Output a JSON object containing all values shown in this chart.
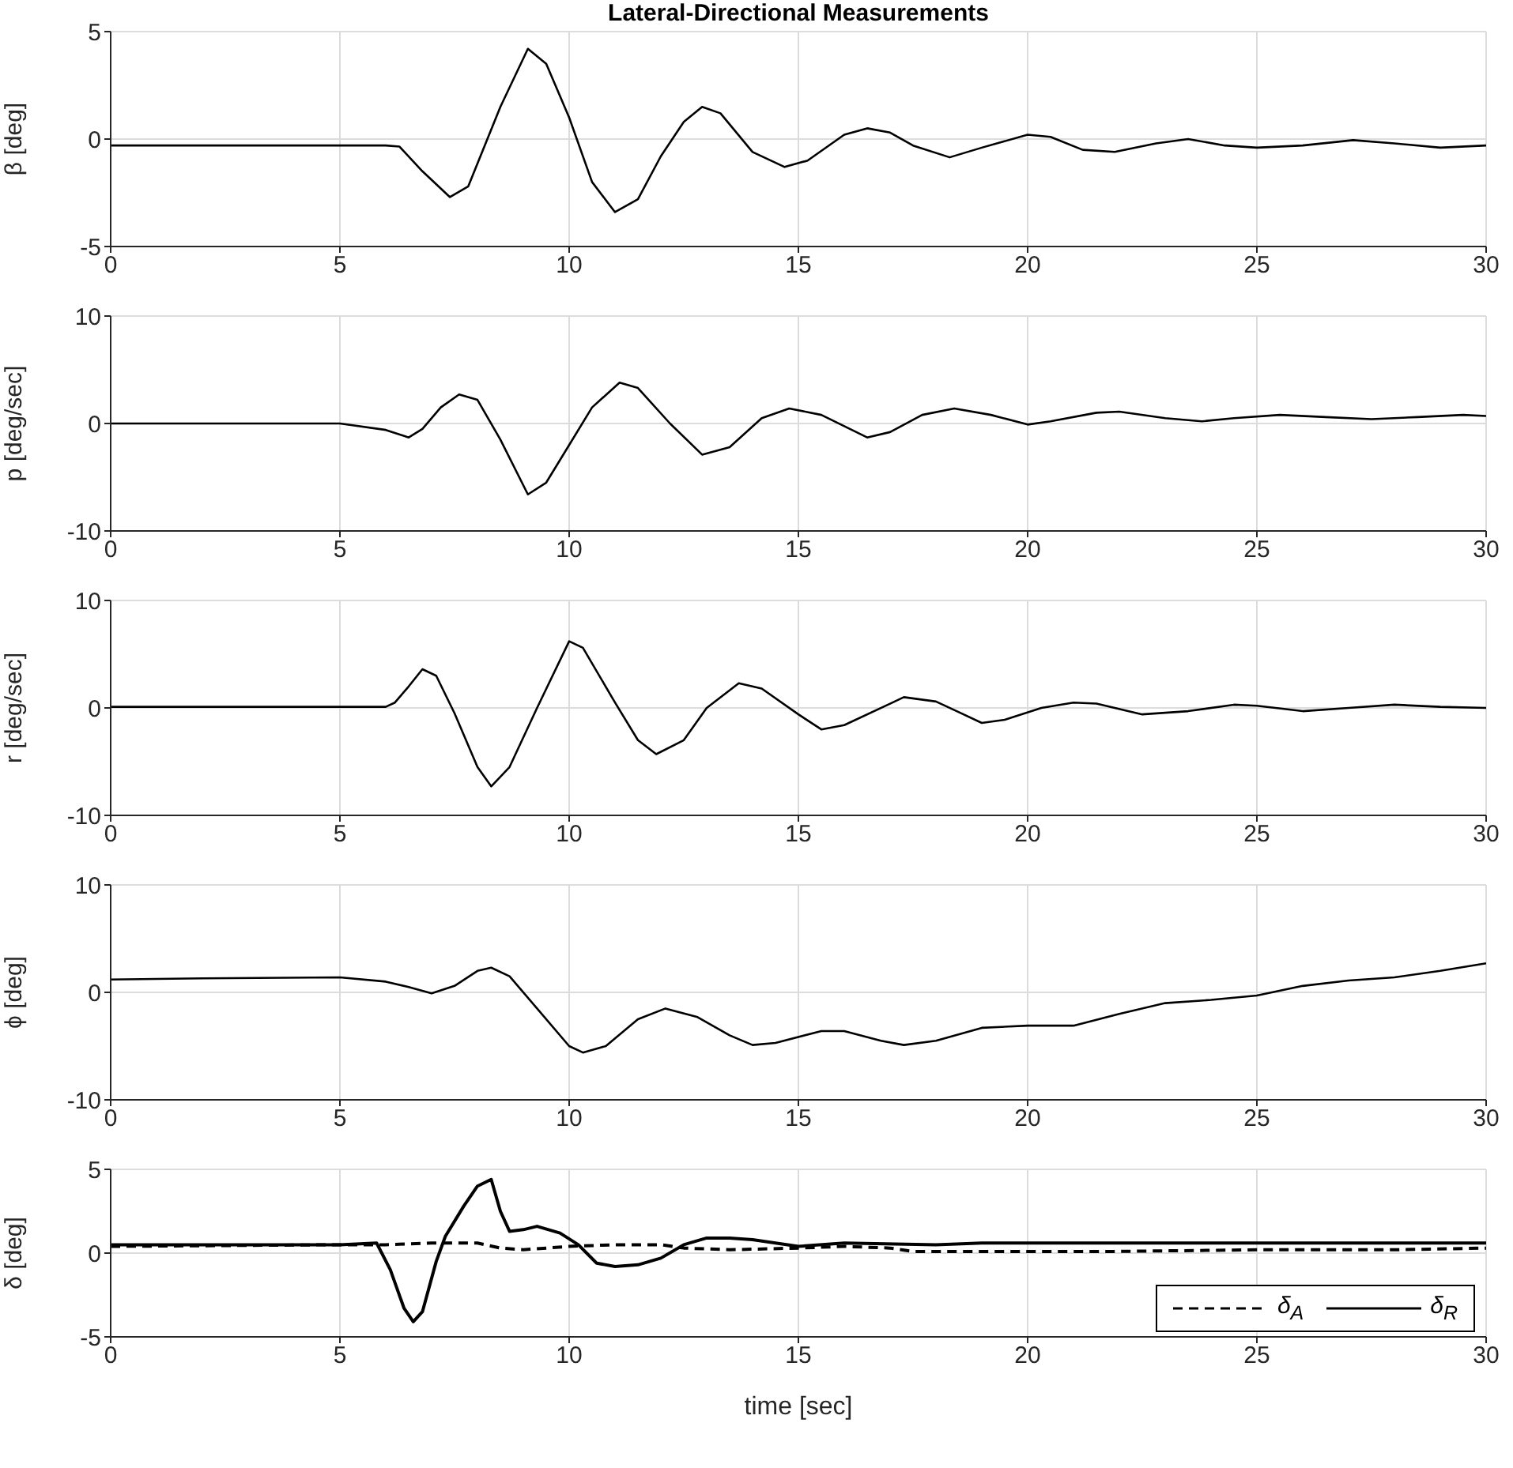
{
  "chart_data": [
    {
      "type": "line",
      "title": "Lateral-Directional Measurements",
      "ylabel": "β [deg]",
      "xlim": [
        0,
        30
      ],
      "xticks": [
        0,
        5,
        10,
        15,
        20,
        25,
        30
      ],
      "ylim": [
        -5,
        5
      ],
      "yticks": [
        -5,
        0,
        5
      ],
      "grid": true,
      "series": [
        {
          "color": "#000000",
          "x": [
            0,
            5,
            6,
            6.3,
            6.8,
            7.4,
            7.8,
            8.5,
            9.1,
            9.5,
            10,
            10.5,
            11,
            11.5,
            12,
            12.5,
            12.9,
            13.3,
            14,
            14.7,
            15.2,
            16,
            16.5,
            17,
            17.5,
            18.3,
            19,
            20,
            20.5,
            21.2,
            21.9,
            22.8,
            23.5,
            24.3,
            25,
            26,
            27.1,
            28,
            29,
            30
          ],
          "values": [
            -0.3,
            -0.3,
            -0.3,
            -0.35,
            -1.5,
            -2.7,
            -2.2,
            1.5,
            4.2,
            3.5,
            1,
            -2,
            -3.4,
            -2.8,
            -0.8,
            0.8,
            1.5,
            1.2,
            -0.6,
            -1.3,
            -1,
            0.2,
            0.5,
            0.3,
            -0.3,
            -0.85,
            -0.4,
            0.2,
            0.1,
            -0.5,
            -0.6,
            -0.2,
            0,
            -0.3,
            -0.4,
            -0.3,
            -0.05,
            -0.2,
            -0.4,
            -0.3
          ]
        }
      ]
    },
    {
      "type": "line",
      "ylabel": "p [deg/sec]",
      "xlim": [
        0,
        30
      ],
      "xticks": [
        0,
        5,
        10,
        15,
        20,
        25,
        30
      ],
      "ylim": [
        -10,
        10
      ],
      "yticks": [
        -10,
        0,
        10
      ],
      "grid": true,
      "series": [
        {
          "color": "#000000",
          "x": [
            0,
            5,
            6,
            6.5,
            6.8,
            7.2,
            7.6,
            8,
            8.5,
            9.1,
            9.5,
            10,
            10.5,
            11.1,
            11.5,
            12.2,
            12.9,
            13.5,
            14.2,
            14.8,
            15.5,
            16.5,
            17,
            17.7,
            18.4,
            19.2,
            20,
            20.5,
            21.5,
            22,
            23,
            23.8,
            24.5,
            25.5,
            26.5,
            27.5,
            28.5,
            29.5,
            30
          ],
          "values": [
            0,
            0,
            -0.6,
            -1.3,
            -0.5,
            1.5,
            2.7,
            2.2,
            -1.5,
            -6.6,
            -5.5,
            -2,
            1.5,
            3.8,
            3.3,
            0,
            -2.9,
            -2.2,
            0.5,
            1.4,
            0.8,
            -1.3,
            -0.8,
            0.8,
            1.4,
            0.8,
            -0.1,
            0.2,
            1,
            1.1,
            0.5,
            0.2,
            0.5,
            0.8,
            0.6,
            0.4,
            0.6,
            0.8,
            0.7
          ]
        }
      ]
    },
    {
      "type": "line",
      "ylabel": "r [deg/sec]",
      "xlim": [
        0,
        30
      ],
      "xticks": [
        0,
        5,
        10,
        15,
        20,
        25,
        30
      ],
      "ylim": [
        -10,
        10
      ],
      "yticks": [
        -10,
        0,
        10
      ],
      "grid": true,
      "series": [
        {
          "color": "#000000",
          "x": [
            0,
            6,
            6.2,
            6.5,
            6.8,
            7.1,
            7.5,
            8,
            8.3,
            8.7,
            9.3,
            10,
            10.3,
            11,
            11.5,
            11.9,
            12.5,
            13,
            13.7,
            14.2,
            15,
            15.5,
            16,
            17,
            17.3,
            18,
            18.5,
            19,
            19.5,
            20.3,
            21,
            21.5,
            22.5,
            23.5,
            24.5,
            25,
            26,
            27,
            28,
            29,
            30
          ],
          "values": [
            0.1,
            0.1,
            0.5,
            2,
            3.6,
            3,
            -0.5,
            -5.5,
            -7.3,
            -5.5,
            0,
            6.2,
            5.6,
            0.5,
            -3,
            -4.3,
            -3,
            0,
            2.3,
            1.8,
            -0.6,
            -2,
            -1.6,
            0.4,
            1,
            0.6,
            -0.4,
            -1.4,
            -1.1,
            0,
            0.5,
            0.4,
            -0.6,
            -0.3,
            0.3,
            0.2,
            -0.3,
            0,
            0.3,
            0.1,
            0
          ]
        }
      ]
    },
    {
      "type": "line",
      "ylabel": "ϕ [deg]",
      "xlim": [
        0,
        30
      ],
      "xticks": [
        0,
        5,
        10,
        15,
        20,
        25,
        30
      ],
      "ylim": [
        -10,
        10
      ],
      "yticks": [
        -10,
        0,
        10
      ],
      "grid": true,
      "series": [
        {
          "color": "#000000",
          "x": [
            0,
            2,
            5,
            6,
            6.5,
            7,
            7.5,
            8,
            8.3,
            8.7,
            9.3,
            10,
            10.3,
            10.8,
            11.5,
            12.1,
            12.8,
            13.5,
            14,
            14.5,
            15.5,
            16,
            16.8,
            17.3,
            18,
            19,
            20,
            21,
            22,
            23,
            24,
            25,
            26,
            27,
            28,
            29,
            30
          ],
          "values": [
            1.2,
            1.3,
            1.4,
            1,
            0.5,
            -0.1,
            0.6,
            2,
            2.3,
            1.5,
            -1.5,
            -5,
            -5.6,
            -5,
            -2.5,
            -1.5,
            -2.3,
            -4,
            -4.9,
            -4.7,
            -3.6,
            -3.6,
            -4.5,
            -4.9,
            -4.5,
            -3.3,
            -3.1,
            -3.1,
            -2,
            -1,
            -0.7,
            -0.3,
            0.6,
            1.1,
            1.4,
            2,
            2.7
          ]
        }
      ]
    },
    {
      "type": "line",
      "ylabel": "δ [deg]",
      "xlabel": "time [sec]",
      "xlim": [
        0,
        30
      ],
      "xticks": [
        0,
        5,
        10,
        15,
        20,
        25,
        30
      ],
      "ylim": [
        -5,
        5
      ],
      "yticks": [
        -5,
        0,
        5
      ],
      "grid": true,
      "legend": "bottom right",
      "series": [
        {
          "name": "δ$_{A}$",
          "color": "#000000",
          "line_style": "dashed",
          "x": [
            0,
            5,
            6,
            7,
            8,
            8.5,
            9,
            10,
            11,
            12,
            12.5,
            13.5,
            15,
            16,
            17,
            17.5,
            19,
            20,
            22,
            25,
            28,
            30
          ],
          "values": [
            0.4,
            0.5,
            0.5,
            0.6,
            0.6,
            0.3,
            0.2,
            0.4,
            0.5,
            0.5,
            0.3,
            0.2,
            0.3,
            0.4,
            0.3,
            0.1,
            0.1,
            0.1,
            0.1,
            0.2,
            0.2,
            0.3
          ]
        },
        {
          "name": "δ$_{R}$",
          "color": "#000000",
          "line_style": "solid",
          "x": [
            0,
            5,
            5.8,
            6.1,
            6.4,
            6.6,
            6.8,
            7.1,
            7.3,
            7.7,
            8,
            8.3,
            8.5,
            8.7,
            9,
            9.3,
            9.8,
            10.2,
            10.6,
            11,
            11.5,
            12,
            12.5,
            13,
            13.5,
            14,
            15,
            16,
            18,
            19,
            22,
            25,
            30
          ],
          "values": [
            0.5,
            0.5,
            0.6,
            -1,
            -3.3,
            -4.1,
            -3.5,
            -0.5,
            1,
            2.8,
            4,
            4.4,
            2.5,
            1.3,
            1.4,
            1.6,
            1.2,
            0.5,
            -0.6,
            -0.8,
            -0.7,
            -0.3,
            0.5,
            0.9,
            0.9,
            0.8,
            0.4,
            0.6,
            0.5,
            0.6,
            0.6,
            0.6,
            0.6
          ]
        }
      ]
    }
  ]
}
